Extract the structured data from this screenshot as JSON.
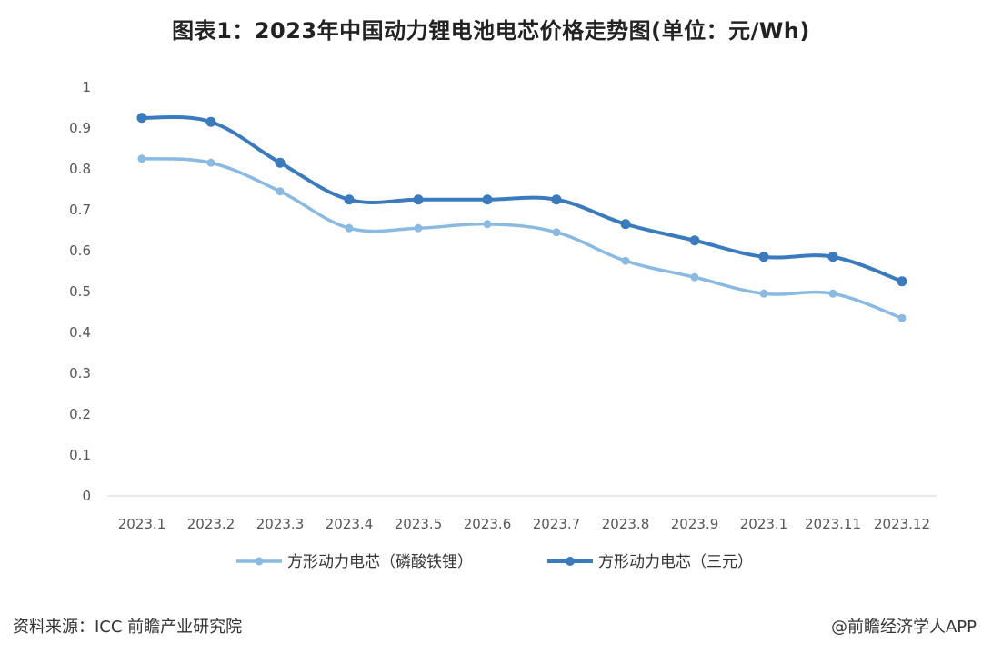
{
  "chart_data": {
    "type": "line",
    "title": "图表1：2023年中国动力锂电池电芯价格走势图(单位：元/Wh)",
    "categories": [
      "2023.1",
      "2023.2",
      "2023.3",
      "2023.4",
      "2023.5",
      "2023.6",
      "2023.7",
      "2023.8",
      "2023.9",
      "2023.1",
      "2023.11",
      "2023.12"
    ],
    "ylim": [
      0,
      1
    ],
    "yticks": [
      "0",
      "0.1",
      "0.2",
      "0.3",
      "0.4",
      "0.5",
      "0.6",
      "0.7",
      "0.8",
      "0.9",
      "1"
    ],
    "grid": false,
    "legend_position": "bottom",
    "series": [
      {
        "name": "方形动力电芯（磷酸铁锂）",
        "color": "#8ab9e1",
        "values": [
          0.825,
          0.815,
          0.745,
          0.655,
          0.655,
          0.665,
          0.645,
          0.575,
          0.535,
          0.495,
          0.495,
          0.435
        ]
      },
      {
        "name": "方形动力电芯（三元）",
        "color": "#3a7abd",
        "values": [
          0.925,
          0.915,
          0.815,
          0.725,
          0.725,
          0.725,
          0.725,
          0.665,
          0.625,
          0.585,
          0.585,
          0.525
        ]
      }
    ]
  },
  "footer": {
    "source": "资料来源：ICC 前瞻产业研究院",
    "brand": "@前瞻经济学人APP"
  }
}
